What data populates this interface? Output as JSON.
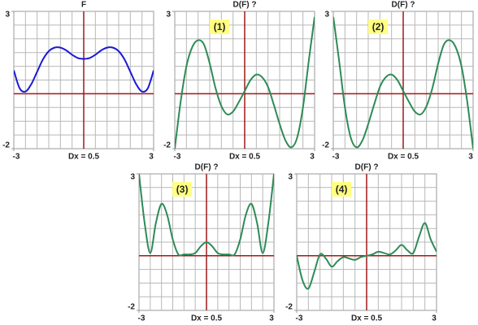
{
  "chart_data": [
    {
      "type": "line",
      "title": "F",
      "x_label": "Dx = 0.5",
      "x": [
        -3,
        -2.75,
        -2.5,
        -2.25,
        -2,
        -1.75,
        -1.5,
        -1.25,
        -1,
        -0.75,
        -0.5,
        -0.25,
        0,
        0.25,
        0.5,
        0.75,
        1,
        1.25,
        1.5,
        1.75,
        2,
        2.25,
        2.5,
        2.75,
        3
      ],
      "series": [
        {
          "color": "#1a1ad6",
          "values": [
            0.85,
            0.2,
            0.08,
            0.35,
            0.8,
            1.25,
            1.55,
            1.68,
            1.68,
            1.58,
            1.42,
            1.3,
            1.27,
            1.3,
            1.42,
            1.58,
            1.68,
            1.68,
            1.55,
            1.25,
            0.8,
            0.35,
            0.08,
            0.2,
            0.85
          ]
        }
      ],
      "xlim": [
        -3,
        3
      ],
      "ylim": [
        -2,
        3
      ],
      "xticks": [
        -3,
        3
      ],
      "yticks": [
        -2,
        3
      ],
      "grid": true,
      "grid_step": 0.5
    },
    {
      "type": "line",
      "title": "D(F) ?",
      "annotation": "(1)",
      "x_label": "Dx = 0.5",
      "x": [
        -3,
        -2.75,
        -2.5,
        -2.25,
        -2,
        -1.75,
        -1.5,
        -1.25,
        -1,
        -0.75,
        -0.5,
        -0.25,
        0,
        0.25,
        0.5,
        0.75,
        1,
        1.25,
        1.5,
        1.75,
        2,
        2.25,
        2.5,
        2.75,
        3
      ],
      "series": [
        {
          "color": "#2e8b57",
          "values": [
            -2,
            -0.3,
            1,
            1.7,
            1.95,
            1.8,
            1.1,
            0.2,
            -0.45,
            -0.75,
            -0.65,
            -0.3,
            0.1,
            0.5,
            0.7,
            0.6,
            0.25,
            -0.4,
            -1.1,
            -1.7,
            -1.95,
            -1.6,
            -0.5,
            1.2,
            2.8
          ]
        }
      ],
      "xlim": [
        -3,
        3
      ],
      "ylim": [
        -2,
        3
      ],
      "xticks": [
        -3,
        3
      ],
      "yticks": [
        -2,
        3
      ],
      "grid": true,
      "grid_step": 0.5
    },
    {
      "type": "line",
      "title": "D(F) ?",
      "annotation": "(2)",
      "x_label": "Dx = 0.5",
      "x": [
        -3,
        -2.75,
        -2.5,
        -2.25,
        -2,
        -1.75,
        -1.5,
        -1.25,
        -1,
        -0.75,
        -0.5,
        -0.25,
        0,
        0.25,
        0.5,
        0.75,
        1,
        1.25,
        1.5,
        1.75,
        2,
        2.25,
        2.5,
        2.75,
        3
      ],
      "series": [
        {
          "color": "#2e8b57",
          "values": [
            2.8,
            1.2,
            -0.5,
            -1.6,
            -1.95,
            -1.7,
            -1.1,
            -0.4,
            0.25,
            0.6,
            0.7,
            0.5,
            0.1,
            -0.3,
            -0.65,
            -0.75,
            -0.45,
            0.2,
            1.1,
            1.8,
            1.95,
            1.7,
            1,
            -0.3,
            -2
          ]
        }
      ],
      "xlim": [
        -3,
        3
      ],
      "ylim": [
        -2,
        3
      ],
      "xticks": [
        -3,
        3
      ],
      "yticks": [
        -2,
        3
      ],
      "grid": true,
      "grid_step": 0.5
    },
    {
      "type": "line",
      "title": "D(F) ?",
      "annotation": "(3)",
      "x_label": "Dx = 0.5",
      "x": [
        -3,
        -2.75,
        -2.5,
        -2.25,
        -2,
        -1.75,
        -1.5,
        -1.25,
        -1,
        -0.75,
        -0.5,
        -0.25,
        0,
        0.25,
        0.5,
        0.75,
        1,
        1.25,
        1.5,
        1.75,
        2,
        2.25,
        2.5,
        2.75,
        3
      ],
      "series": [
        {
          "color": "#2e8b57",
          "values": [
            3,
            1.2,
            0.1,
            1.2,
            1.9,
            1.5,
            0.6,
            0.05,
            0.05,
            0.05,
            0.1,
            0.35,
            0.5,
            0.35,
            0.1,
            0.05,
            0.05,
            0.05,
            0.6,
            1.5,
            1.9,
            1.2,
            0.1,
            1.2,
            3
          ]
        }
      ],
      "xlim": [
        -3,
        3
      ],
      "ylim": [
        -2,
        3
      ],
      "xticks": [
        -3,
        3
      ],
      "yticks": [
        -2,
        3
      ],
      "grid": true,
      "grid_step": 0.5
    },
    {
      "type": "line",
      "title": "D(F) ?",
      "annotation": "(4)",
      "x_label": "Dx = 0.5",
      "x": [
        -3,
        -2.75,
        -2.5,
        -2.25,
        -2,
        -1.75,
        -1.5,
        -1.25,
        -1,
        -0.75,
        -0.5,
        -0.25,
        0,
        0.25,
        0.5,
        0.75,
        1,
        1.25,
        1.5,
        1.75,
        2,
        2.25,
        2.5,
        2.75,
        3
      ],
      "series": [
        {
          "color": "#2e8b57",
          "values": [
            0,
            -0.9,
            -1.2,
            -0.6,
            0.05,
            -0.1,
            -0.4,
            -0.2,
            -0.05,
            -0.1,
            -0.15,
            -0.05,
            0,
            0.05,
            0.15,
            0.1,
            0.05,
            0.2,
            0.4,
            0.2,
            0.1,
            0.7,
            1.2,
            0.6,
            0.15
          ]
        }
      ],
      "xlim": [
        -3,
        3
      ],
      "ylim": [
        -2,
        3
      ],
      "xticks": [
        -3,
        3
      ],
      "yticks": [
        -2,
        3
      ],
      "grid": true,
      "grid_step": 0.5
    }
  ]
}
